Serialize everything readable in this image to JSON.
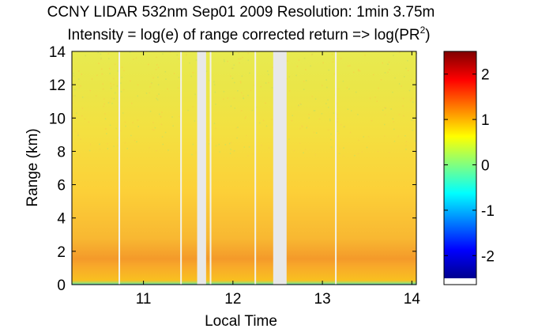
{
  "chart_data": {
    "type": "heatmap",
    "title_line1": "CCNY LIDAR 532nm Sep01 2009 Resolution: 1min 3.75m",
    "title_line2_prefix": "Intensity = log(e) of range corrected return => log(PR",
    "title_line2_sup": "2",
    "title_line2_suffix": ")",
    "xlabel": "Local Time",
    "ylabel": "Range (km)",
    "xlim": [
      10.2,
      14.05
    ],
    "ylim": [
      0,
      14
    ],
    "x_ticks": [
      11,
      12,
      13,
      14
    ],
    "y_ticks": [
      0,
      2,
      4,
      6,
      8,
      10,
      12,
      14
    ],
    "colorbar": {
      "range": [
        -2.5,
        2.5
      ],
      "ticks": [
        2,
        1,
        0,
        -1,
        -2
      ],
      "colors": [
        "#00008f",
        "#0000ff",
        "#0080ff",
        "#00ffff",
        "#80ff80",
        "#ffff00",
        "#ff8000",
        "#ff0000",
        "#800000"
      ]
    },
    "gaps": [
      {
        "start": 11.6,
        "end": 11.7
      },
      {
        "start": 12.45,
        "end": 12.6
      }
    ],
    "thin_gaps": [
      10.73,
      11.42,
      11.75,
      12.25,
      13.15
    ],
    "layers": [
      {
        "from": 0,
        "to": 0.12,
        "value": -1.2
      },
      {
        "from": 0.12,
        "to": 0.3,
        "value": 0.2
      },
      {
        "from": 0.3,
        "to": 1.0,
        "value": 1.05
      },
      {
        "from": 1.0,
        "to": 1.6,
        "value": 1.25
      },
      {
        "from": 1.6,
        "to": 3.0,
        "value": 0.95
      },
      {
        "from": 3.0,
        "to": 5.5,
        "value": 0.75
      },
      {
        "from": 5.5,
        "to": 9.0,
        "value": 0.62
      },
      {
        "from": 9.0,
        "to": 12.0,
        "value": 0.55
      },
      {
        "from": 12.0,
        "to": 14.0,
        "value": 0.45
      }
    ]
  }
}
